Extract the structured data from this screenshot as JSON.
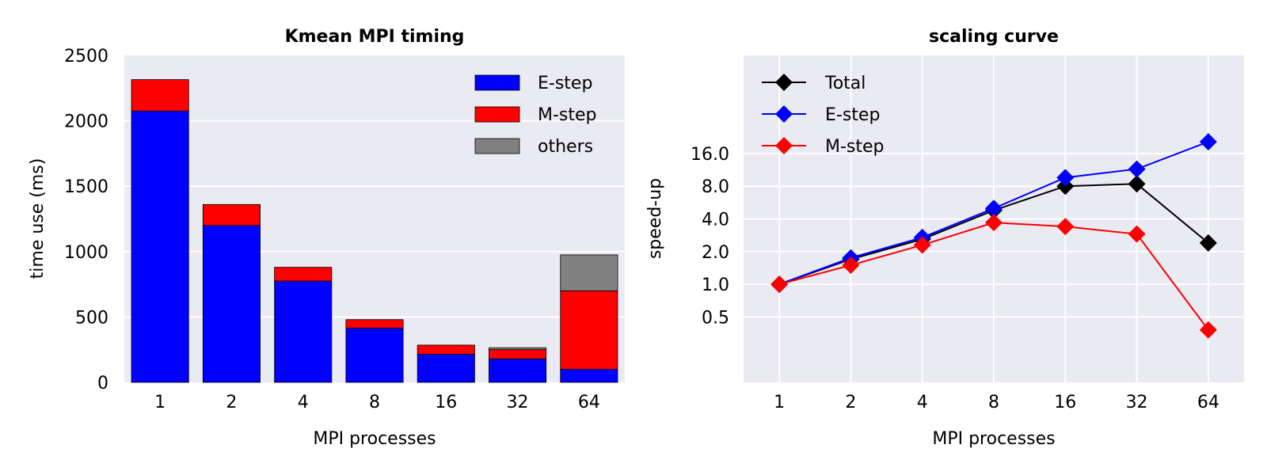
{
  "chart_data": [
    {
      "type": "bar",
      "stacked": true,
      "title": "Kmean MPI timing",
      "xlabel": "MPI processes",
      "ylabel": "time use (ms)",
      "ylim": [
        0,
        2500
      ],
      "yticks": [
        "0",
        "500",
        "1000",
        "1500",
        "2000",
        "2500"
      ],
      "categories": [
        "1",
        "2",
        "4",
        "8",
        "16",
        "32",
        "64"
      ],
      "legend_position": "top-right",
      "grid": true,
      "series": [
        {
          "name": "E-step",
          "color": "#0000ff",
          "values": [
            2075,
            1200,
            775,
            415,
            215,
            180,
            100
          ]
        },
        {
          "name": "M-step",
          "color": "#ff0000",
          "values": [
            240,
            160,
            105,
            65,
            70,
            70,
            600
          ]
        },
        {
          "name": "others",
          "color": "#808080",
          "values": [
            0,
            0,
            0,
            0,
            0,
            15,
            275
          ]
        }
      ]
    },
    {
      "type": "line",
      "title": "scaling curve",
      "xlabel": "MPI processes",
      "ylabel": "speed-up",
      "y_scale": "log2",
      "ylim": [
        0.125,
        128
      ],
      "yticks": [
        "0.5",
        "1.0",
        "2.0",
        "4.0",
        "8.0",
        "16.0"
      ],
      "categories": [
        "1",
        "2",
        "4",
        "8",
        "16",
        "32",
        "64"
      ],
      "legend_position": "top-left",
      "grid": true,
      "series": [
        {
          "name": "Total",
          "color": "#000000",
          "values": [
            1.0,
            1.7,
            2.6,
            4.8,
            8.0,
            8.4,
            2.4
          ]
        },
        {
          "name": "E-step",
          "color": "#0000ff",
          "values": [
            1.0,
            1.75,
            2.7,
            5.0,
            9.6,
            11.5,
            20.5
          ]
        },
        {
          "name": "M-step",
          "color": "#ff0000",
          "values": [
            1.0,
            1.5,
            2.3,
            3.7,
            3.4,
            2.9,
            0.38
          ]
        }
      ]
    }
  ]
}
